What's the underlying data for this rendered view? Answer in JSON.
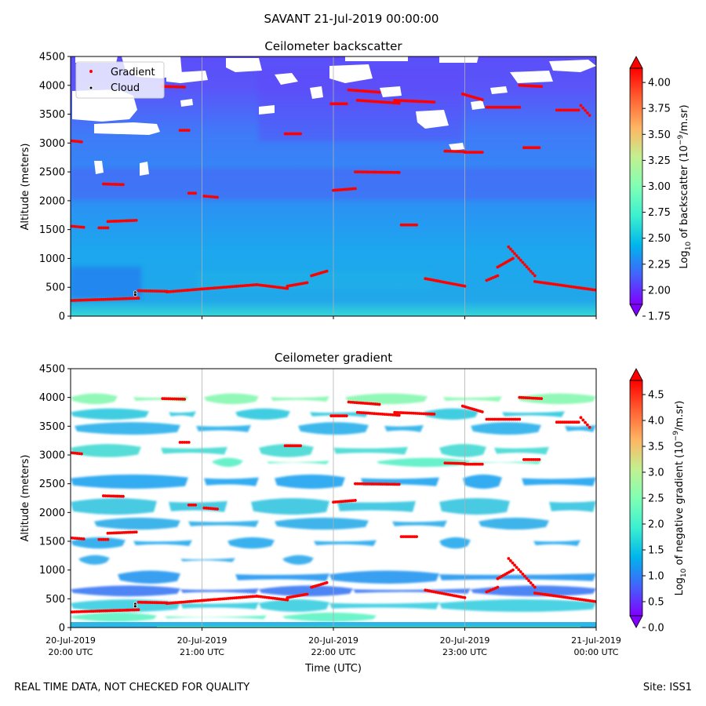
{
  "figure": {
    "suptitle": "SAVANT 21-Jul-2019 00:00:00",
    "footer_left": "REAL TIME DATA, NOT CHECKED FOR QUALITY",
    "footer_right": "Site: ISS1"
  },
  "chart_data": [
    {
      "type": "heatmap",
      "title": "Ceilometer backscatter",
      "xlabel": "",
      "ylabel": "Altitude (meters)",
      "ylim": [
        0,
        4500
      ],
      "yticks": [
        "0",
        "500",
        "1000",
        "1500",
        "2000",
        "2500",
        "3000",
        "3500",
        "4000",
        "4500"
      ],
      "colorbar": {
        "label_prefix": "Log",
        "label_sub": "10",
        "label_mid": " of backscatter (10",
        "label_sup": "−9",
        "label_suffix": "/m.sr)",
        "range": [
          1.75,
          4.25
        ],
        "ticks": [
          "1.75",
          "2.00",
          "2.25",
          "2.50",
          "2.75",
          "3.00",
          "3.25",
          "3.50",
          "3.75",
          "4.00"
        ],
        "colormap": "rainbow",
        "extend": "both"
      },
      "legend": {
        "placement": "top-left",
        "entries": [
          {
            "name": "Gradient",
            "color": "#ff0000"
          },
          {
            "name": "Cloud",
            "color": "#000000"
          }
        ]
      },
      "grid": "vertical"
    },
    {
      "type": "heatmap",
      "title": "Ceilometer gradient",
      "xlabel": "Time (UTC)",
      "ylabel": "Altitude (meters)",
      "ylim": [
        0,
        4500
      ],
      "yticks": [
        "0",
        "500",
        "1000",
        "1500",
        "2000",
        "2500",
        "3000",
        "3500",
        "4000",
        "4500"
      ],
      "colorbar": {
        "label_prefix": "Log",
        "label_sub": "10",
        "label_mid": " of negative gradient (10",
        "label_sup": "−9",
        "label_suffix": "/m.sr)",
        "range": [
          0.0,
          5.0
        ],
        "ticks": [
          "0.0",
          "0.5",
          "1.0",
          "1.5",
          "2.0",
          "2.5",
          "3.0",
          "3.5",
          "4.0",
          "4.5"
        ],
        "colormap": "rainbow",
        "extend": "both"
      },
      "grid": "vertical"
    }
  ],
  "x_axis": {
    "range_minutes": [
      0,
      240
    ],
    "ticks": [
      {
        "date": "20-Jul-2019",
        "time": "20:00 UTC"
      },
      {
        "date": "20-Jul-2019",
        "time": "21:00 UTC"
      },
      {
        "date": "20-Jul-2019",
        "time": "22:00 UTC"
      },
      {
        "date": "20-Jul-2019",
        "time": "23:00 UTC"
      },
      {
        "date": "21-Jul-2019",
        "time": "00:00 UTC"
      }
    ]
  },
  "series": {
    "cloud_points": [
      [
        29.5,
        410
      ],
      [
        29.5,
        370
      ]
    ],
    "gradient_segments": [
      {
        "t": [
          0,
          31
        ],
        "alt": [
          270,
          310
        ]
      },
      {
        "t": [
          31,
          44
        ],
        "alt": [
          440,
          430
        ]
      },
      {
        "t": [
          44,
          60
        ],
        "alt": [
          420,
          470
        ]
      },
      {
        "t": [
          60,
          85
        ],
        "alt": [
          470,
          545
        ]
      },
      {
        "t": [
          85,
          99
        ],
        "alt": [
          545,
          480
        ]
      },
      {
        "t": [
          99,
          108
        ],
        "alt": [
          520,
          580
        ]
      },
      {
        "t": [
          110,
          117
        ],
        "alt": [
          700,
          780
        ]
      },
      {
        "t": [
          0,
          6
        ],
        "alt": [
          1560,
          1540
        ]
      },
      {
        "t": [
          13,
          17
        ],
        "alt": [
          1530,
          1530
        ]
      },
      {
        "t": [
          17,
          30
        ],
        "alt": [
          1640,
          1660
        ]
      },
      {
        "t": [
          0,
          5
        ],
        "alt": [
          3040,
          3020
        ]
      },
      {
        "t": [
          15,
          24
        ],
        "alt": [
          2290,
          2280
        ]
      },
      {
        "t": [
          42,
          52
        ],
        "alt": [
          3980,
          3970
        ]
      },
      {
        "t": [
          50,
          54
        ],
        "alt": [
          3220,
          3220
        ]
      },
      {
        "t": [
          54,
          57
        ],
        "alt": [
          2130,
          2130
        ]
      },
      {
        "t": [
          61,
          67
        ],
        "alt": [
          2080,
          2060
        ]
      },
      {
        "t": [
          98,
          105
        ],
        "alt": [
          3160,
          3160
        ]
      },
      {
        "t": [
          119,
          126
        ],
        "alt": [
          3680,
          3680
        ]
      },
      {
        "t": [
          120,
          130
        ],
        "alt": [
          2180,
          2210
        ]
      },
      {
        "t": [
          127,
          141
        ],
        "alt": [
          3920,
          3880
        ]
      },
      {
        "t": [
          131,
          150
        ],
        "alt": [
          3740,
          3690
        ]
      },
      {
        "t": [
          130,
          150
        ],
        "alt": [
          2500,
          2490
        ]
      },
      {
        "t": [
          151,
          158
        ],
        "alt": [
          1580,
          1580
        ]
      },
      {
        "t": [
          148,
          166
        ],
        "alt": [
          3740,
          3710
        ]
      },
      {
        "t": [
          171,
          180
        ],
        "alt": [
          2860,
          2850
        ]
      },
      {
        "t": [
          180,
          188
        ],
        "alt": [
          2840,
          2840
        ]
      },
      {
        "t": [
          179,
          188
        ],
        "alt": [
          3850,
          3750
        ]
      },
      {
        "t": [
          190,
          205
        ],
        "alt": [
          3620,
          3620
        ]
      },
      {
        "t": [
          205,
          215
        ],
        "alt": [
          4000,
          3980
        ]
      },
      {
        "t": [
          207,
          214
        ],
        "alt": [
          2920,
          2920
        ]
      },
      {
        "t": [
          222,
          232
        ],
        "alt": [
          3570,
          3570
        ]
      },
      {
        "t": [
          233,
          237
        ],
        "alt": [
          3650,
          3480
        ]
      },
      {
        "t": [
          200,
          212
        ],
        "alt": [
          1200,
          700
        ]
      },
      {
        "t": [
          212,
          240
        ],
        "alt": [
          600,
          450
        ]
      },
      {
        "t": [
          162,
          180
        ],
        "alt": [
          650,
          520
        ]
      },
      {
        "t": [
          190,
          195
        ],
        "alt": [
          620,
          700
        ]
      },
      {
        "t": [
          195,
          202
        ],
        "alt": [
          850,
          1000
        ]
      }
    ]
  }
}
